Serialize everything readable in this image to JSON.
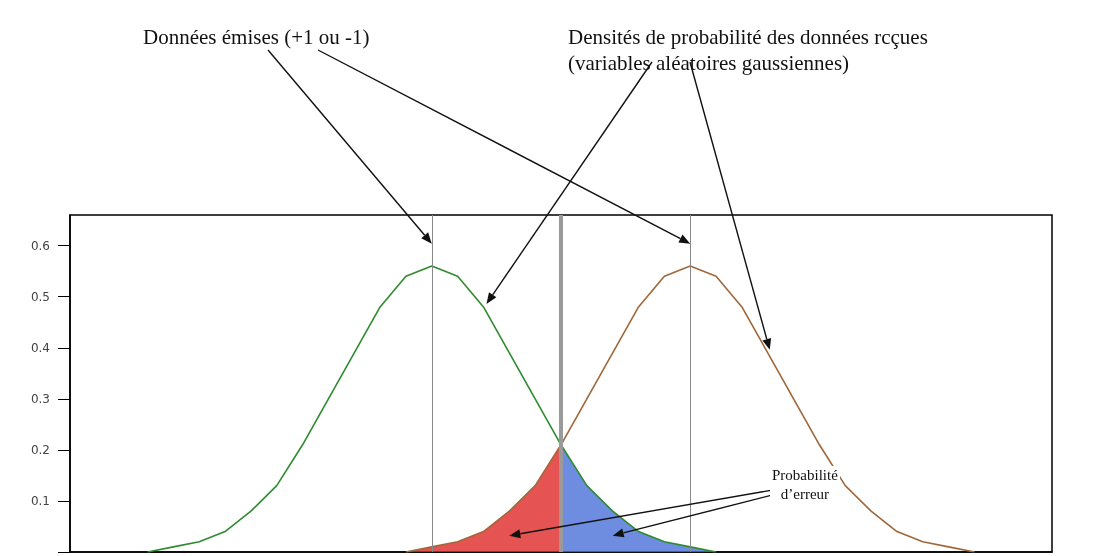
{
  "chart_data": {
    "type": "line",
    "annotations": [
      "Données émises (+1 ou -1)",
      "Densités de probabilité des données rcçues\n(variables aléatoires gaussiennes)",
      "Probabilité\nd’erreur"
    ],
    "categories": [
      null,
      null,
      null,
      null,
      null,
      null,
      null,
      null,
      null,
      null,
      null,
      null,
      null,
      null,
      null,
      null,
      null,
      null,
      null,
      null,
      null,
      null,
      null,
      null,
      null,
      null,
      null,
      null,
      null,
      null,
      null,
      null,
      null,
      null,
      null,
      null,
      null,
      null,
      null
    ],
    "series": [
      {
        "color": "#2e8b2e",
        "values": [
          null,
          null,
          null,
          0,
          0.01,
          0.02,
          0.04,
          0.08,
          0.13,
          0.21,
          0.3,
          0.39,
          0.48,
          0.54,
          0.56,
          0.54,
          0.48,
          0.39,
          0.3,
          0.21,
          0.13,
          0.08,
          0.04,
          0.02,
          0.01,
          0,
          null,
          null,
          null,
          null,
          null,
          null,
          null,
          null,
          null,
          null,
          null,
          null,
          null
        ]
      },
      {
        "color": "#a0673a",
        "values": [
          null,
          null,
          null,
          null,
          null,
          null,
          null,
          null,
          null,
          null,
          null,
          null,
          null,
          0,
          0.01,
          0.02,
          0.04,
          0.08,
          0.13,
          0.21,
          0.3,
          0.39,
          0.48,
          0.54,
          0.56,
          0.54,
          0.48,
          0.39,
          0.3,
          0.21,
          0.13,
          0.08,
          0.04,
          0.02,
          0.01,
          0,
          null,
          null,
          null
        ]
      },
      {
        "type": "area",
        "color": "#e02828",
        "values": [
          null,
          null,
          null,
          null,
          null,
          null,
          null,
          null,
          null,
          null,
          null,
          null,
          null,
          0,
          0.01,
          0.02,
          0.04,
          0.08,
          0.13,
          0.21,
          null,
          null,
          null,
          null,
          null,
          null,
          null,
          null,
          null,
          null,
          null,
          null,
          null,
          null,
          null,
          null,
          null,
          null,
          null
        ]
      },
      {
        "type": "area",
        "color": "#4a6fd8",
        "values": [
          null,
          null,
          null,
          null,
          null,
          null,
          null,
          null,
          null,
          null,
          null,
          null,
          null,
          null,
          null,
          null,
          null,
          null,
          null,
          0.21,
          0.13,
          0.08,
          0.04,
          0.02,
          0.01,
          0,
          null,
          null,
          null,
          null,
          null,
          null,
          null,
          null,
          null,
          null,
          null,
          null,
          null
        ]
      }
    ],
    "ylim": [
      0,
      0.66
    ],
    "yticks": [
      0.1,
      0.2,
      0.3,
      0.4,
      0.5,
      0.6
    ],
    "tick_labels": "y",
    "grid": false
  }
}
